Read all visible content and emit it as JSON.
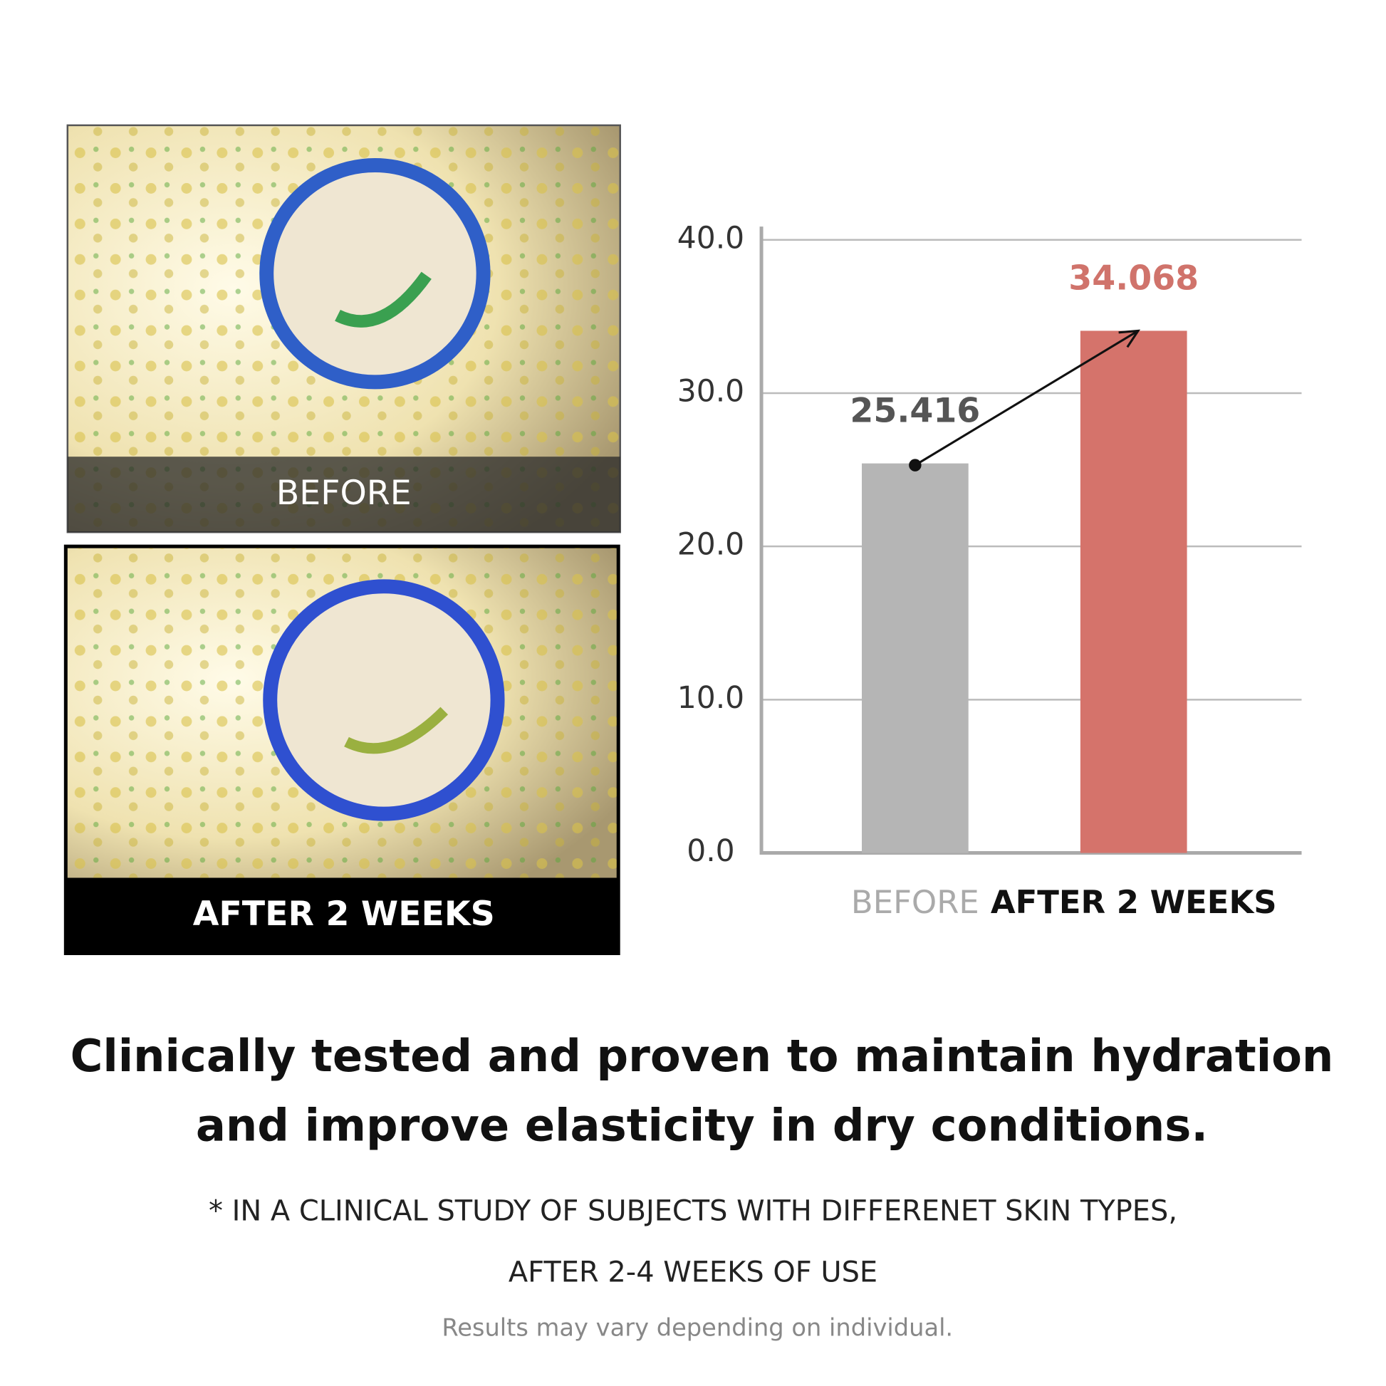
{
  "images": [
    {
      "label": "BEFORE"
    },
    {
      "label": "AFTER 2 WEEKS"
    }
  ],
  "chart_data": {
    "type": "bar",
    "categories": [
      "BEFORE",
      "AFTER 2 WEEKS"
    ],
    "values": [
      25.416,
      34.068
    ],
    "colors": [
      "#b5b5b5",
      "#d5736b"
    ],
    "ylim": [
      0,
      40
    ],
    "yticks": [
      {
        "value": 0,
        "label": "0.0"
      },
      {
        "value": 10,
        "label": "10.0"
      },
      {
        "value": 20,
        "label": "20.0"
      },
      {
        "value": 30,
        "label": "30.0"
      },
      {
        "value": 40,
        "label": "40.0"
      }
    ],
    "grid": true
  },
  "headline": [
    "Clinically tested and proven to maintain hydration",
    "and improve elasticity in dry conditions."
  ],
  "footnote": [
    "* IN A CLINICAL STUDY OF SUBJECTS WITH DIFFERENET SKIN TYPES,",
    "AFTER 2-4 WEEKS OF USE"
  ],
  "disclaimer": "Results may vary depending on individual."
}
